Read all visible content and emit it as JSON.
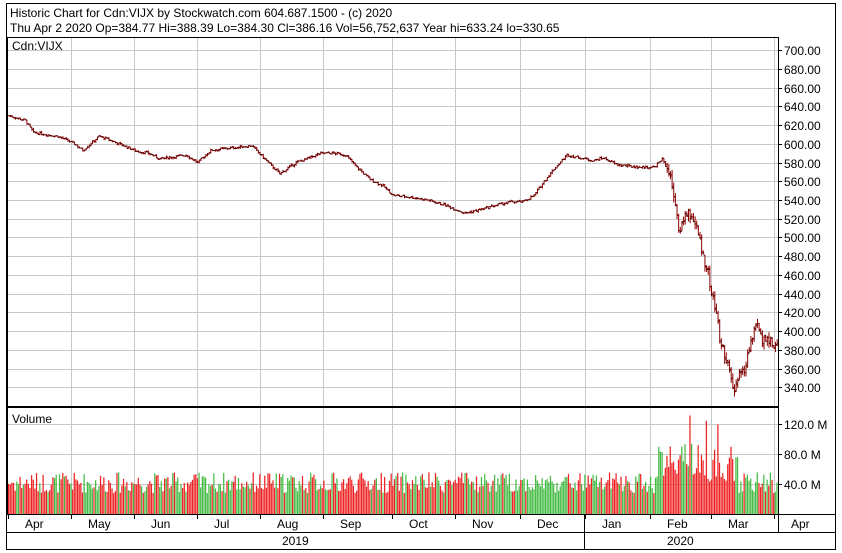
{
  "header": {
    "line1": "Historic Chart for Cdn:VIJX by Stockwatch.com 604.687.1500 - (c) 2020",
    "line2": "Thu Apr  2 2020   Op=384.77   Hi=388.39   Lo=384.30   Cl=386.16   Vol=56,752,637   Year hi=633.24   lo=330.65"
  },
  "colors": {
    "price_bar": "#8b0000",
    "vol_up": "#44bb44",
    "vol_down": "#ee2222",
    "grid": "#c8c8c8"
  },
  "chart_data": [
    {
      "type": "line",
      "label": "Cdn:VIJX",
      "ylim": [
        320,
        713
      ],
      "y_ticks": [
        "700.00",
        "680.00",
        "660.00",
        "640.00",
        "620.00",
        "600.00",
        "580.00",
        "560.00",
        "540.00",
        "520.00",
        "500.00",
        "480.00",
        "460.00",
        "440.00",
        "420.00",
        "400.00",
        "380.00",
        "360.00",
        "340.00"
      ],
      "anchors": [
        [
          0,
          630
        ],
        [
          10,
          625
        ],
        [
          15,
          612
        ],
        [
          30,
          608
        ],
        [
          40,
          600
        ],
        [
          45,
          593
        ],
        [
          55,
          608
        ],
        [
          60,
          605
        ],
        [
          70,
          598
        ],
        [
          78,
          592
        ],
        [
          85,
          590
        ],
        [
          92,
          584
        ],
        [
          100,
          586
        ],
        [
          108,
          588
        ],
        [
          115,
          580
        ],
        [
          123,
          593
        ],
        [
          132,
          595
        ],
        [
          138,
          596
        ],
        [
          148,
          598
        ],
        [
          158,
          580
        ],
        [
          165,
          568
        ],
        [
          175,
          580
        ],
        [
          183,
          585
        ],
        [
          190,
          590
        ],
        [
          198,
          590
        ],
        [
          205,
          588
        ],
        [
          212,
          575
        ],
        [
          220,
          562
        ],
        [
          228,
          555
        ],
        [
          234,
          545
        ],
        [
          245,
          543
        ],
        [
          255,
          540
        ],
        [
          265,
          535
        ],
        [
          272,
          530
        ],
        [
          278,
          526
        ],
        [
          288,
          530
        ],
        [
          298,
          535
        ],
        [
          306,
          538
        ],
        [
          313,
          538
        ],
        [
          320,
          545
        ],
        [
          326,
          560
        ],
        [
          333,
          575
        ],
        [
          340,
          588
        ],
        [
          348,
          585
        ],
        [
          356,
          582
        ],
        [
          362,
          585
        ],
        [
          370,
          578
        ],
        [
          378,
          576
        ],
        [
          385,
          575
        ],
        [
          393,
          575
        ],
        [
          398,
          584
        ],
        [
          402,
          570
        ],
        [
          405,
          548
        ],
        [
          408,
          505
        ],
        [
          410,
          515
        ],
        [
          413,
          528
        ],
        [
          417,
          520
        ],
        [
          420,
          503
        ],
        [
          423,
          480
        ],
        [
          426,
          462
        ],
        [
          428,
          440
        ],
        [
          431,
          420
        ],
        [
          433,
          392
        ],
        [
          436,
          375
        ],
        [
          438,
          365
        ],
        [
          440,
          345
        ],
        [
          442,
          335
        ],
        [
          445,
          360
        ],
        [
          448,
          352
        ],
        [
          450,
          378
        ],
        [
          453,
          395
        ],
        [
          456,
          405
        ],
        [
          459,
          390
        ],
        [
          462,
          395
        ],
        [
          465,
          385
        ],
        [
          468,
          386
        ]
      ],
      "total_points": 469
    },
    {
      "type": "bar",
      "label": "Volume",
      "ylim": [
        0,
        142
      ],
      "y_ticks": [
        "120.0 M",
        "80.0 M",
        "40.0 M"
      ],
      "tick_values": [
        120,
        80,
        40
      ],
      "units": "millions"
    },
    {
      "type": "axis",
      "months": [
        "Apr",
        "May",
        "Jun",
        "Jul",
        "Aug",
        "Sep",
        "Oct",
        "Nov",
        "Dec",
        "Jan",
        "Feb",
        "Mar",
        "Apr"
      ],
      "month_days": [
        0,
        30,
        60,
        90,
        120,
        150,
        183,
        213,
        244,
        275,
        306,
        335,
        365
      ],
      "years": [
        "2019",
        "2020"
      ],
      "start_date": "2019-04-01",
      "end_date": "2020-04-02"
    }
  ]
}
